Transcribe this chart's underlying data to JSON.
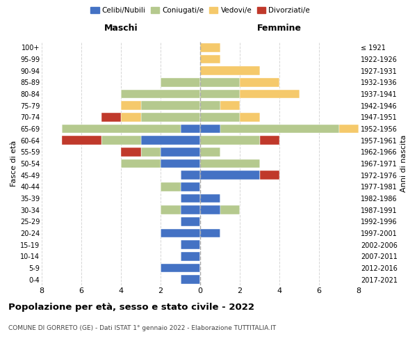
{
  "age_groups": [
    "0-4",
    "5-9",
    "10-14",
    "15-19",
    "20-24",
    "25-29",
    "30-34",
    "35-39",
    "40-44",
    "45-49",
    "50-54",
    "55-59",
    "60-64",
    "65-69",
    "70-74",
    "75-79",
    "80-84",
    "85-89",
    "90-94",
    "95-99",
    "100+"
  ],
  "birth_years": [
    "2017-2021",
    "2012-2016",
    "2007-2011",
    "2002-2006",
    "1997-2001",
    "1992-1996",
    "1987-1991",
    "1982-1986",
    "1977-1981",
    "1972-1976",
    "1967-1971",
    "1962-1966",
    "1957-1961",
    "1952-1956",
    "1947-1951",
    "1942-1946",
    "1937-1941",
    "1932-1936",
    "1927-1931",
    "1922-1926",
    "≤ 1921"
  ],
  "male": {
    "celibi": [
      1,
      2,
      1,
      1,
      2,
      1,
      1,
      1,
      1,
      1,
      2,
      2,
      3,
      1,
      0,
      0,
      0,
      0,
      0,
      0,
      0
    ],
    "coniugati": [
      0,
      0,
      0,
      0,
      0,
      0,
      1,
      0,
      1,
      0,
      2,
      1,
      2,
      6,
      3,
      3,
      4,
      2,
      0,
      0,
      0
    ],
    "vedovi": [
      0,
      0,
      0,
      0,
      0,
      0,
      0,
      0,
      0,
      0,
      0,
      0,
      0,
      0,
      1,
      1,
      0,
      0,
      0,
      0,
      0
    ],
    "divorziati": [
      0,
      0,
      0,
      0,
      0,
      0,
      0,
      0,
      0,
      0,
      0,
      1,
      2,
      0,
      1,
      0,
      0,
      0,
      0,
      0,
      0
    ]
  },
  "female": {
    "nubili": [
      0,
      0,
      0,
      0,
      1,
      0,
      1,
      1,
      0,
      3,
      0,
      0,
      0,
      1,
      0,
      0,
      0,
      0,
      0,
      0,
      0
    ],
    "coniugate": [
      0,
      0,
      0,
      0,
      0,
      0,
      1,
      0,
      0,
      0,
      3,
      1,
      3,
      6,
      2,
      1,
      2,
      2,
      0,
      0,
      0
    ],
    "vedove": [
      0,
      0,
      0,
      0,
      0,
      0,
      0,
      0,
      0,
      0,
      0,
      0,
      0,
      1,
      1,
      1,
      3,
      2,
      3,
      1,
      1
    ],
    "divorziate": [
      0,
      0,
      0,
      0,
      0,
      0,
      0,
      0,
      0,
      1,
      0,
      0,
      1,
      0,
      0,
      0,
      0,
      0,
      0,
      0,
      0
    ]
  },
  "colors": {
    "celibi": "#4472c4",
    "coniugati": "#b5c98e",
    "vedovi": "#f5c96b",
    "divorziati": "#c0392b"
  },
  "title": "Popolazione per età, sesso e stato civile - 2022",
  "subtitle": "COMUNE DI GORRETO (GE) - Dati ISTAT 1° gennaio 2022 - Elaborazione TUTTITALIA.IT",
  "xlabel_left": "Maschi",
  "xlabel_right": "Femmine",
  "ylabel_left": "Fasce di età",
  "ylabel_right": "Anni di nascita",
  "xlim": 8,
  "background_color": "#ffffff"
}
